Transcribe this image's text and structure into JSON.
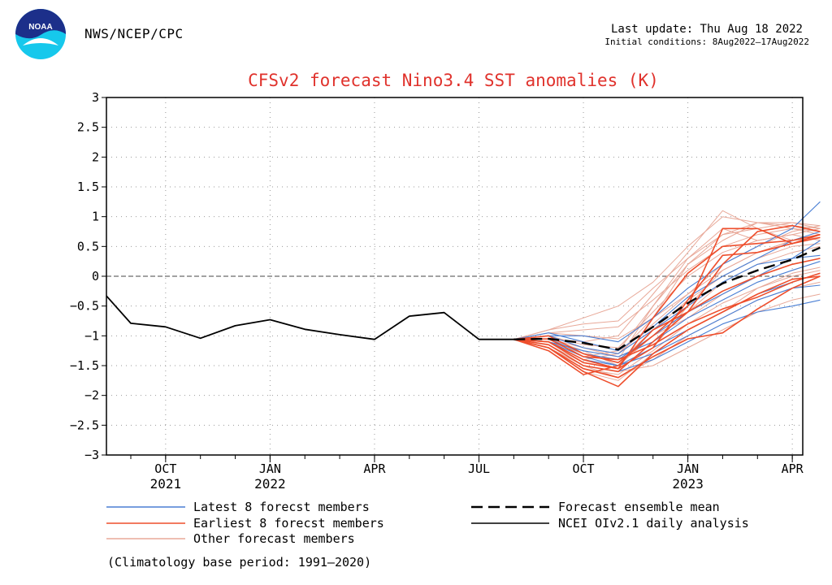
{
  "header": {
    "agency": "NWS/NCEP/CPC",
    "logo_text": "NOAA",
    "last_update": "Last update: Thu Aug 18 2022",
    "initial_conditions": "Initial conditions: 8Aug2022–17Aug2022"
  },
  "footnote": "(Climatology base period: 1991–2020)",
  "chart_data": {
    "type": "line",
    "title": "CFSv2 forecast Nino3.4 SST anomalies (K)",
    "ylabel": "",
    "xlabel": "",
    "ylim": [
      -3,
      3
    ],
    "yticks": [
      3,
      2.5,
      2,
      1.5,
      1,
      0.5,
      0,
      -0.5,
      -1,
      -1.5,
      -2,
      -2.5,
      -3
    ],
    "ytick_labels": [
      "3",
      "2.5",
      "2",
      "1.5",
      "1",
      "0.5",
      "0",
      "−0.5",
      "−1",
      "−1.5",
      "−2",
      "−2.5",
      "−3"
    ],
    "xlim_months": [
      -0.7,
      19.3
    ],
    "xticks": [
      {
        "m": 1,
        "label": "OCT",
        "year": "2021"
      },
      {
        "m": 4,
        "label": "JAN",
        "year": "2022"
      },
      {
        "m": 7,
        "label": "APR",
        "year": ""
      },
      {
        "m": 10,
        "label": "JUL",
        "year": ""
      },
      {
        "m": 13,
        "label": "OCT",
        "year": ""
      },
      {
        "m": 16,
        "label": "JAN",
        "year": "2023"
      },
      {
        "m": 19,
        "label": "APR",
        "year": ""
      }
    ],
    "colors": {
      "latest": "#4a7fd4",
      "earliest": "#ee4e2c",
      "other": "#e8a898",
      "mean": "#000000",
      "observed": "#000000",
      "title": "#e0322c",
      "zero": "#444444"
    },
    "forecast_x": [
      11.0,
      12.0,
      13.0,
      14.0,
      15.0,
      16.0,
      17.0,
      18.0,
      19.0,
      19.8
    ],
    "observed": {
      "name": "NCEI OIv2.1 daily analysis",
      "x": [
        -0.7,
        0.0,
        1.0,
        2.0,
        3.0,
        4.0,
        5.0,
        6.0,
        7.0,
        8.0,
        9.0,
        10.0,
        11.0
      ],
      "y": [
        -0.33,
        -0.79,
        -0.85,
        -1.04,
        -0.83,
        -0.73,
        -0.89,
        -0.98,
        -1.06,
        -0.67,
        -0.61,
        -1.06,
        -1.06
      ]
    },
    "series": [
      {
        "name": "Forecast ensemble mean",
        "group": "mean",
        "values": [
          -1.06,
          -1.05,
          -1.12,
          -1.23,
          -0.85,
          -0.45,
          -0.12,
          0.1,
          0.28,
          0.48
        ]
      },
      {
        "name": "Latest member 1",
        "group": "latest",
        "values": [
          -1.06,
          -1.1,
          -1.4,
          -1.5,
          -1.2,
          -0.9,
          -0.6,
          -0.3,
          -0.1,
          0.05
        ]
      },
      {
        "name": "Latest member 2",
        "group": "latest",
        "values": [
          -1.06,
          -1.0,
          -1.2,
          -1.3,
          -0.9,
          -0.5,
          -0.1,
          0.2,
          0.3,
          0.35
        ]
      },
      {
        "name": "Latest member 3",
        "group": "latest",
        "values": [
          -1.06,
          -1.15,
          -1.5,
          -1.6,
          -1.4,
          -1.1,
          -0.8,
          -0.6,
          -0.5,
          -0.4
        ]
      },
      {
        "name": "Latest member 4",
        "group": "latest",
        "values": [
          -1.06,
          -1.0,
          -1.0,
          -1.1,
          -0.7,
          -0.2,
          0.2,
          0.5,
          0.8,
          1.25
        ]
      },
      {
        "name": "Latest member 5",
        "group": "latest",
        "values": [
          -1.06,
          -1.05,
          -1.3,
          -1.4,
          -1.0,
          -0.6,
          -0.3,
          0.0,
          0.3,
          0.6
        ]
      },
      {
        "name": "Latest member 6",
        "group": "latest",
        "values": [
          -1.06,
          -1.1,
          -1.35,
          -1.5,
          -1.3,
          -1.0,
          -0.7,
          -0.4,
          -0.2,
          -0.15
        ]
      },
      {
        "name": "Latest member 7",
        "group": "latest",
        "values": [
          -1.06,
          -0.95,
          -1.1,
          -1.25,
          -0.85,
          -0.35,
          0.0,
          0.3,
          0.6,
          0.75
        ]
      },
      {
        "name": "Latest member 8",
        "group": "latest",
        "values": [
          -1.06,
          -1.1,
          -1.25,
          -1.35,
          -1.1,
          -0.7,
          -0.4,
          -0.1,
          0.1,
          0.25
        ]
      },
      {
        "name": "Earliest member 1",
        "group": "earliest",
        "values": [
          -1.06,
          -1.2,
          -1.6,
          -1.85,
          -1.3,
          -0.9,
          -0.6,
          -0.3,
          -0.05,
          0.0
        ]
      },
      {
        "name": "Earliest member 2",
        "group": "earliest",
        "values": [
          -1.06,
          -1.15,
          -1.5,
          -1.6,
          -1.1,
          -0.6,
          0.2,
          0.75,
          0.85,
          0.75
        ]
      },
      {
        "name": "Earliest member 3",
        "group": "earliest",
        "values": [
          -1.06,
          -1.1,
          -1.4,
          -1.55,
          -1.2,
          -0.4,
          0.35,
          0.4,
          0.55,
          0.65
        ]
      },
      {
        "name": "Earliest member 4",
        "group": "earliest",
        "values": [
          -1.06,
          -1.2,
          -1.55,
          -1.7,
          -1.35,
          -1.05,
          -0.95,
          -0.55,
          -0.2,
          0.0
        ]
      },
      {
        "name": "Earliest member 5",
        "group": "earliest",
        "values": [
          -1.06,
          -1.0,
          -1.3,
          -1.45,
          -1.0,
          -0.5,
          0.8,
          0.8,
          0.55,
          0.7
        ]
      },
      {
        "name": "Earliest member 6",
        "group": "earliest",
        "values": [
          -1.06,
          -1.1,
          -1.45,
          -1.55,
          -0.7,
          0.05,
          0.5,
          0.55,
          0.6,
          0.7
        ]
      },
      {
        "name": "Earliest member 7",
        "group": "earliest",
        "values": [
          -1.06,
          -1.25,
          -1.65,
          -1.5,
          -0.9,
          -0.6,
          -0.25,
          0.0,
          0.2,
          0.3
        ]
      },
      {
        "name": "Earliest member 8",
        "group": "earliest",
        "values": [
          -1.06,
          -1.05,
          -1.35,
          -1.4,
          -1.15,
          -0.8,
          -0.55,
          -0.35,
          -0.1,
          0.05
        ]
      },
      {
        "name": "Other member 1",
        "group": "other",
        "values": [
          -1.06,
          -0.95,
          -0.9,
          -0.85,
          -0.4,
          0.1,
          0.5,
          0.7,
          0.8,
          0.7
        ]
      },
      {
        "name": "Other member 2",
        "group": "other",
        "values": [
          -1.06,
          -1.1,
          -1.3,
          -1.4,
          -0.5,
          0.2,
          0.6,
          0.9,
          0.9,
          0.8
        ]
      },
      {
        "name": "Other member 3",
        "group": "other",
        "values": [
          -1.06,
          -1.0,
          -1.2,
          -1.3,
          -0.8,
          -0.3,
          0.1,
          0.4,
          0.6,
          0.7
        ]
      },
      {
        "name": "Other member 4",
        "group": "other",
        "values": [
          -1.06,
          -1.15,
          -1.5,
          -1.7,
          -1.4,
          -1.0,
          -0.7,
          -0.4,
          -0.2,
          -0.1
        ]
      },
      {
        "name": "Other member 5",
        "group": "other",
        "values": [
          -1.06,
          -1.05,
          -1.25,
          -1.5,
          -1.0,
          -0.7,
          -0.3,
          0.0,
          0.2,
          0.3
        ]
      },
      {
        "name": "Other member 6",
        "group": "other",
        "values": [
          -1.06,
          -0.9,
          -0.8,
          -0.75,
          -0.2,
          0.3,
          0.7,
          0.9,
          0.8,
          0.75
        ]
      },
      {
        "name": "Other member 7",
        "group": "other",
        "values": [
          -1.06,
          -1.2,
          -1.6,
          -1.75,
          -1.3,
          -0.9,
          -0.6,
          -0.2,
          0.0,
          0.1
        ]
      },
      {
        "name": "Other member 8",
        "group": "other",
        "values": [
          -1.06,
          -1.0,
          -1.15,
          -1.2,
          -0.6,
          0.0,
          0.4,
          0.6,
          0.7,
          0.6
        ]
      },
      {
        "name": "Other member 9",
        "group": "other",
        "values": [
          -1.06,
          -1.1,
          -1.4,
          -1.3,
          -0.7,
          0.2,
          0.7,
          0.8,
          0.9,
          0.85
        ]
      },
      {
        "name": "Other member 10",
        "group": "other",
        "values": [
          -1.06,
          -1.05,
          -1.2,
          -1.35,
          -1.1,
          -0.6,
          -0.1,
          0.2,
          0.4,
          0.5
        ]
      },
      {
        "name": "Other member 11",
        "group": "other",
        "values": [
          -1.06,
          -0.9,
          -0.7,
          -0.5,
          -0.1,
          0.5,
          1.0,
          0.9,
          0.85,
          0.8
        ]
      },
      {
        "name": "Other member 12",
        "group": "other",
        "values": [
          -1.06,
          -1.2,
          -1.5,
          -1.6,
          -1.5,
          -1.2,
          -0.9,
          -0.6,
          -0.4,
          -0.3
        ]
      },
      {
        "name": "Other member 13",
        "group": "other",
        "values": [
          -1.06,
          -1.0,
          -1.3,
          -1.45,
          -0.9,
          -0.4,
          0.0,
          0.3,
          0.5,
          0.55
        ]
      },
      {
        "name": "Other member 14",
        "group": "other",
        "values": [
          -1.06,
          -1.1,
          -1.35,
          -1.25,
          -0.5,
          0.3,
          0.8,
          0.6,
          0.7,
          0.8
        ]
      },
      {
        "name": "Other member 15",
        "group": "other",
        "values": [
          -1.06,
          -0.95,
          -1.0,
          -1.05,
          -0.7,
          -0.3,
          0.2,
          0.5,
          0.75,
          0.85
        ]
      },
      {
        "name": "Other member 16",
        "group": "other",
        "values": [
          -1.06,
          -1.15,
          -1.45,
          -1.55,
          -1.2,
          -0.5,
          0.1,
          0.4,
          0.6,
          0.65
        ]
      },
      {
        "name": "Other member 17",
        "group": "other",
        "values": [
          -1.06,
          -1.05,
          -1.1,
          -1.0,
          -0.3,
          0.4,
          1.1,
          0.8,
          0.6,
          0.7
        ]
      },
      {
        "name": "Other member 18",
        "group": "other",
        "values": [
          -1.06,
          -1.2,
          -1.55,
          -1.65,
          -1.25,
          -0.8,
          -0.45,
          -0.2,
          0.05,
          0.15
        ]
      }
    ],
    "legend": [
      {
        "label": "Latest 8 forecst members",
        "color": "latest",
        "style": "solid"
      },
      {
        "label": "Earliest 8 forecst members",
        "color": "earliest",
        "style": "solid"
      },
      {
        "label": "Other forecast members",
        "color": "other",
        "style": "solid"
      },
      {
        "label": "Forecast ensemble mean",
        "color": "mean",
        "style": "dashed"
      },
      {
        "label": "NCEI OIv2.1 daily analysis",
        "color": "observed",
        "style": "solid"
      }
    ]
  }
}
